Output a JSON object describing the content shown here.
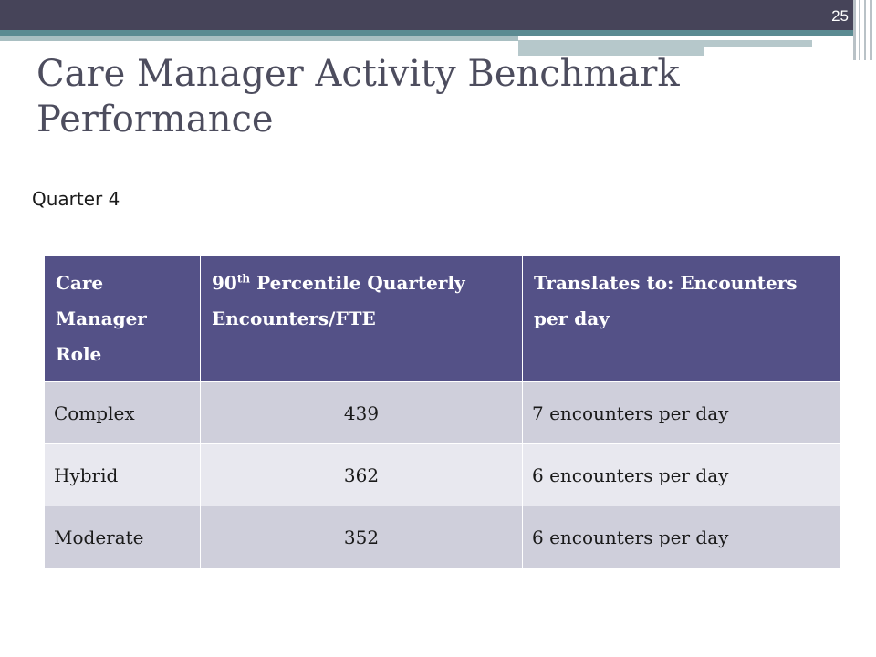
{
  "slide": {
    "number": "25",
    "title": "Care Manager Activity Benchmark Performance",
    "subtitle": "Quarter 4"
  },
  "colors": {
    "header_bar": "#464459",
    "accent_teal": "#5b8b92",
    "table_header": "#545187",
    "row_odd": "#cfcfdb",
    "row_even": "#e8e8ef"
  },
  "table": {
    "headers": {
      "role": "Care Manager Role",
      "percentile_pre": "90",
      "percentile_sup": "th",
      "percentile_post": " Percentile Quarterly Encounters/FTE",
      "translates": "Translates to: Encounters per day"
    },
    "rows": [
      {
        "role": "Complex",
        "encounters": "439",
        "per_day": "7 encounters per day"
      },
      {
        "role": "Hybrid",
        "encounters": "362",
        "per_day": "6 encounters per day"
      },
      {
        "role": "Moderate",
        "encounters": "352",
        "per_day": "6 encounters per day"
      }
    ]
  }
}
